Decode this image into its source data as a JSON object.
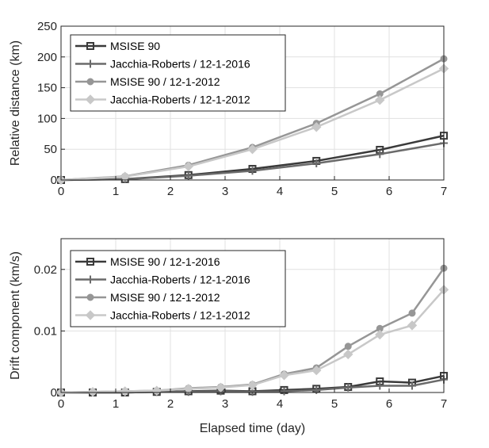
{
  "chart_data": [
    {
      "type": "line",
      "title": "",
      "xlabel": "",
      "ylabel": "Relative distance (km)",
      "xlim": [
        0,
        7
      ],
      "ylim": [
        0,
        250
      ],
      "xticks": [
        "0",
        "1",
        "2",
        "3",
        "4",
        "5",
        "6",
        "7"
      ],
      "yticks": [
        "0",
        "50",
        "100",
        "150",
        "200",
        "250"
      ],
      "grid": true,
      "legend_position": "top-left",
      "series": [
        {
          "name": "MSISE 90",
          "color": "#3a3a3a",
          "marker": "square",
          "x": [
            0,
            1.17,
            2.33,
            3.5,
            4.67,
            5.83,
            7.0
          ],
          "y": [
            0,
            1.5,
            8,
            18,
            31,
            49,
            72
          ]
        },
        {
          "name": "Jacchia-Roberts / 12-1-2016",
          "color": "#6a6a6a",
          "marker": "plus",
          "x": [
            0,
            1.17,
            2.33,
            3.5,
            4.67,
            5.83,
            7.0
          ],
          "y": [
            0,
            1.3,
            7,
            15,
            27,
            42,
            60
          ]
        },
        {
          "name": "MSISE 90 / 12-1-2012",
          "color": "#969696",
          "marker": "circle",
          "x": [
            0,
            1.17,
            2.33,
            3.5,
            4.67,
            5.83,
            7.0
          ],
          "y": [
            0,
            6,
            24,
            53,
            92,
            140,
            197
          ]
        },
        {
          "name": "Jacchia-Roberts / 12-1-2012",
          "color": "#c8c8c8",
          "marker": "diamond",
          "x": [
            0,
            1.17,
            2.33,
            3.5,
            4.67,
            5.83,
            7.0
          ],
          "y": [
            0,
            5.5,
            22,
            50,
            86,
            130,
            181
          ]
        }
      ]
    },
    {
      "type": "line",
      "title": "",
      "xlabel": "Elapsed time (day)",
      "ylabel": "Drift component (km/s)",
      "xlim": [
        0,
        7
      ],
      "ylim": [
        0,
        0.025
      ],
      "xticks": [
        "0",
        "1",
        "2",
        "3",
        "4",
        "5",
        "6",
        "7"
      ],
      "yticks": [
        "0",
        "0.01",
        "0.02"
      ],
      "grid": true,
      "legend_position": "top-left",
      "series": [
        {
          "name": "MSISE 90 / 12-1-2016",
          "color": "#3a3a3a",
          "marker": "square",
          "x": [
            0,
            0.58,
            1.17,
            1.75,
            2.33,
            2.92,
            3.5,
            4.08,
            4.67,
            5.25,
            5.83,
            6.42,
            7.0
          ],
          "y": [
            0,
            0,
            0,
            0.0001,
            0.0002,
            0.0003,
            0.0002,
            0.0004,
            0.0006,
            0.0009,
            0.0018,
            0.0016,
            0.0027
          ]
        },
        {
          "name": "Jacchia-Roberts / 12-1-2016",
          "color": "#6a6a6a",
          "marker": "plus",
          "x": [
            0,
            0.58,
            1.17,
            1.75,
            2.33,
            2.92,
            3.5,
            4.08,
            4.67,
            5.25,
            5.83,
            6.42,
            7.0
          ],
          "y": [
            0,
            0,
            0,
            0.0001,
            0.0001,
            0.0002,
            0.0001,
            0.0002,
            0.0004,
            0.0008,
            0.0011,
            0.0011,
            0.0021
          ]
        },
        {
          "name": "MSISE 90 / 12-1-2012",
          "color": "#969696",
          "marker": "circle",
          "x": [
            0,
            0.58,
            1.17,
            1.75,
            2.33,
            2.92,
            3.5,
            4.08,
            4.67,
            5.25,
            5.83,
            6.42,
            7.0
          ],
          "y": [
            0,
            0.0001,
            0.0002,
            0.0003,
            0.0007,
            0.0009,
            0.0013,
            0.003,
            0.004,
            0.0075,
            0.0104,
            0.0129,
            0.0202
          ]
        },
        {
          "name": "Jacchia-Roberts / 12-1-2012",
          "color": "#c8c8c8",
          "marker": "diamond",
          "x": [
            0,
            0.58,
            1.17,
            1.75,
            2.33,
            2.92,
            3.5,
            4.08,
            4.67,
            5.25,
            5.83,
            6.42,
            7.0
          ],
          "y": [
            0,
            0.0001,
            0.0002,
            0.0003,
            0.0006,
            0.0008,
            0.0012,
            0.0028,
            0.0036,
            0.0062,
            0.0094,
            0.0109,
            0.0167
          ]
        }
      ]
    }
  ]
}
